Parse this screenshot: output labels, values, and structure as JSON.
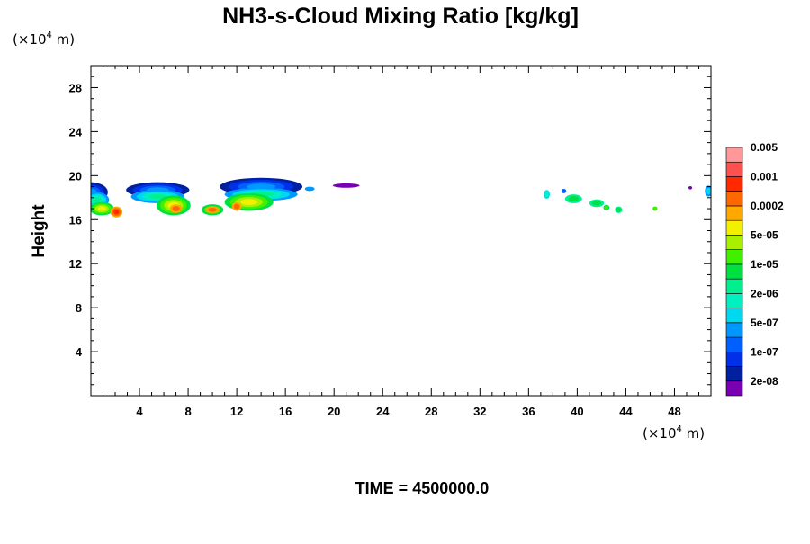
{
  "chart_data": {
    "type": "heatmap",
    "title": "NH3-s-Cloud Mixing Ratio [kg/kg]",
    "ylabel": "Height",
    "x_unit_prefix": "(×10",
    "x_unit_exp": "4",
    "x_unit_suffix": " m)",
    "y_unit_prefix": "(×10",
    "y_unit_exp": "4",
    "y_unit_suffix": " m)",
    "xlim": [
      0,
      51
    ],
    "ylim": [
      0,
      30
    ],
    "x_ticks": [
      4,
      8,
      12,
      16,
      20,
      24,
      28,
      32,
      36,
      40,
      44,
      48
    ],
    "y_ticks": [
      4,
      8,
      12,
      16,
      20,
      24,
      28
    ],
    "time_label": "TIME = 4500000.0",
    "colorbar": {
      "colors": [
        "#7a00b4",
        "#0020a0",
        "#0030e8",
        "#0060ff",
        "#0098ff",
        "#00d8f0",
        "#00f0c0",
        "#00f090",
        "#00e040",
        "#40f000",
        "#a8f000",
        "#f0f000",
        "#ffa800",
        "#ff6800",
        "#ff2800",
        "#ff5050",
        "#ff9898"
      ],
      "labels": [
        "2e-08",
        "1e-07",
        "5e-07",
        "2e-06",
        "1e-05",
        "5e-05",
        "0.0002",
        "0.001",
        "0.005"
      ]
    },
    "cloud_regions": [
      {
        "x": 0.0,
        "y": 18.5,
        "rx": 1.4,
        "ry": 0.9,
        "level": 1
      },
      {
        "x": 0.5,
        "y": 17.8,
        "rx": 1.0,
        "ry": 0.7,
        "level": 4
      },
      {
        "x": 0.9,
        "y": 17.0,
        "rx": 1.0,
        "ry": 0.6,
        "level": 8
      },
      {
        "x": 2.1,
        "y": 16.7,
        "rx": 0.5,
        "ry": 0.5,
        "level": 12
      },
      {
        "x": 5.5,
        "y": 18.7,
        "rx": 2.6,
        "ry": 0.7,
        "level": 1
      },
      {
        "x": 5.5,
        "y": 18.1,
        "rx": 2.2,
        "ry": 0.6,
        "level": 4
      },
      {
        "x": 6.8,
        "y": 17.3,
        "rx": 1.4,
        "ry": 0.9,
        "level": 8
      },
      {
        "x": 7.0,
        "y": 17.0,
        "rx": 0.5,
        "ry": 0.4,
        "level": 12
      },
      {
        "x": 10.0,
        "y": 16.9,
        "rx": 0.9,
        "ry": 0.5,
        "level": 8
      },
      {
        "x": 10.0,
        "y": 16.9,
        "rx": 0.6,
        "ry": 0.3,
        "level": 12
      },
      {
        "x": 14.0,
        "y": 19.0,
        "rx": 3.4,
        "ry": 0.8,
        "level": 1
      },
      {
        "x": 14.0,
        "y": 18.3,
        "rx": 3.0,
        "ry": 0.6,
        "level": 4
      },
      {
        "x": 13.0,
        "y": 17.6,
        "rx": 2.0,
        "ry": 0.8,
        "level": 8
      },
      {
        "x": 12.0,
        "y": 17.2,
        "rx": 0.4,
        "ry": 0.4,
        "level": 12
      },
      {
        "x": 18.0,
        "y": 18.8,
        "rx": 0.4,
        "ry": 0.2,
        "level": 4
      },
      {
        "x": 21.0,
        "y": 19.1,
        "rx": 1.1,
        "ry": 0.2,
        "level": 0
      },
      {
        "x": 37.5,
        "y": 18.3,
        "rx": 0.25,
        "ry": 0.4,
        "level": 5
      },
      {
        "x": 38.9,
        "y": 18.6,
        "rx": 0.2,
        "ry": 0.2,
        "level": 3
      },
      {
        "x": 39.7,
        "y": 17.9,
        "rx": 0.7,
        "ry": 0.4,
        "level": 7
      },
      {
        "x": 41.6,
        "y": 17.5,
        "rx": 0.6,
        "ry": 0.35,
        "level": 7
      },
      {
        "x": 42.4,
        "y": 17.1,
        "rx": 0.25,
        "ry": 0.25,
        "level": 8
      },
      {
        "x": 43.4,
        "y": 16.9,
        "rx": 0.3,
        "ry": 0.3,
        "level": 7
      },
      {
        "x": 46.4,
        "y": 17.0,
        "rx": 0.2,
        "ry": 0.2,
        "level": 9
      },
      {
        "x": 49.3,
        "y": 18.9,
        "rx": 0.15,
        "ry": 0.15,
        "level": 0
      },
      {
        "x": 50.8,
        "y": 18.6,
        "rx": 0.3,
        "ry": 0.5,
        "level": 4
      }
    ]
  }
}
